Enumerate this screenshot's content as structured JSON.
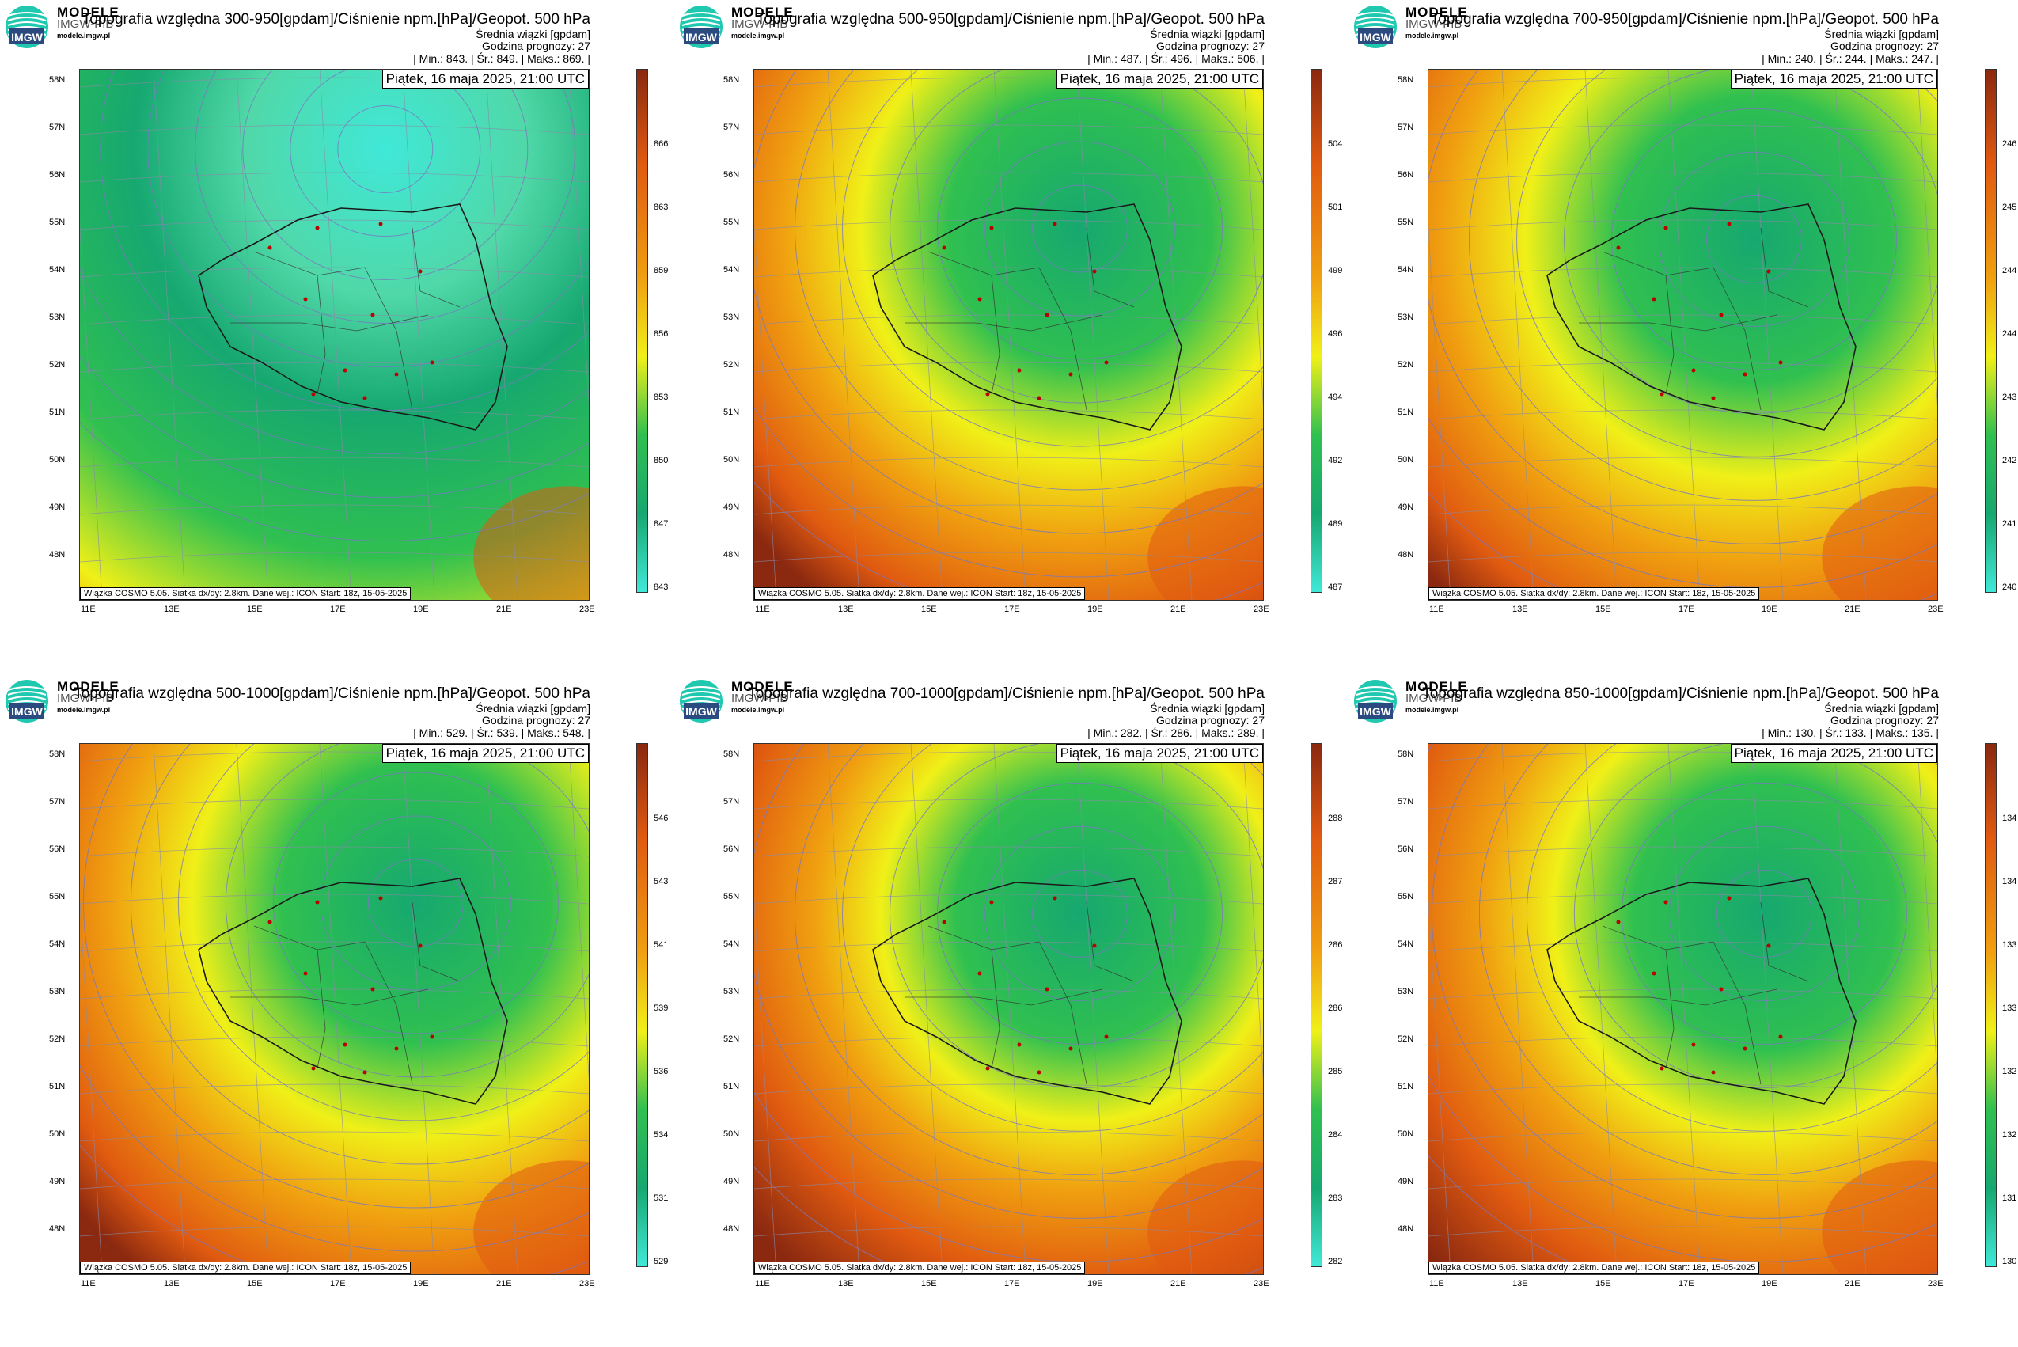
{
  "brand": {
    "name": "MODELE",
    "sub": "IMGW-PIB",
    "site": "modele.imgw.pl",
    "logo_text": "IMGW"
  },
  "colors": {
    "low": "#40e8d8",
    "mid1": "#16a870",
    "mid2": "#30c050",
    "mid3": "#f0f018",
    "mid4": "#f0a010",
    "high1": "#e05a10",
    "high2": "#8a2810"
  },
  "lat_labels": [
    "58N",
    "57N",
    "56N",
    "55N",
    "54N",
    "53N",
    "52N",
    "51N",
    "50N",
    "49N",
    "48N"
  ],
  "lon_labels": [
    "11E",
    "13E",
    "15E",
    "17E",
    "19E",
    "21E",
    "23E"
  ],
  "panels": [
    {
      "title": "Topografia względna 300-950[gpdam]/Ciśnienie npm.[hPa]/Geopot. 500 hPa",
      "subtitle1": "Średnia wiązki [gpdam]",
      "subtitle2": "Godzina prognozy: 27",
      "stats": "| Min.:    843. | Śr.:    849. | Maks.:    869. |",
      "date": "Piątek, 16 maja 2025, 21:00 UTC",
      "footer": "Wiązka COSMO 5.05. Siatka dx/dy: 2.8km. Dane wej.: ICON Start: 18z, 15-05-2025",
      "ticks": [
        "866",
        "863",
        "859",
        "856",
        "853",
        "850",
        "847",
        "843"
      ]
    },
    {
      "title": "Topografia względna 500-950[gpdam]/Ciśnienie npm.[hPa]/Geopot. 500 hPa",
      "subtitle1": "Średnia wiązki [gpdam]",
      "subtitle2": "Godzina prognozy: 27",
      "stats": "| Min.:    487. | Śr.:    496. | Maks.:    506. |",
      "date": "Piątek, 16 maja 2025, 21:00 UTC",
      "footer": "Wiązka COSMO 5.05. Siatka dx/dy: 2.8km. Dane wej.: ICON Start: 18z, 15-05-2025",
      "ticks": [
        "504",
        "501",
        "499",
        "496",
        "494",
        "492",
        "489",
        "487"
      ]
    },
    {
      "title": "Topografia względna 700-950[gpdam]/Ciśnienie npm.[hPa]/Geopot. 500 hPa",
      "subtitle1": "Średnia wiązki [gpdam]",
      "subtitle2": "Godzina prognozy: 27",
      "stats": "| Min.:    240. | Śr.:    244. | Maks.:    247. |",
      "date": "Piątek, 16 maja 2025, 21:00 UTC",
      "footer": "Wiązka COSMO 5.05. Siatka dx/dy: 2.8km. Dane wej.: ICON Start: 18z, 15-05-2025",
      "ticks": [
        "246",
        "245",
        "244",
        "244",
        "243",
        "242",
        "241",
        "240"
      ]
    },
    {
      "title": "Topografia względna 500-1000[gpdam]/Ciśnienie npm.[hPa]/Geopot. 500 hPa",
      "subtitle1": "Średnia wiązki [gpdam]",
      "subtitle2": "Godzina prognozy: 27",
      "stats": "| Min.:    529. | Śr.:    539. | Maks.:    548. |",
      "date": "Piątek, 16 maja 2025, 21:00 UTC",
      "footer": "Wiązka COSMO 5.05. Siatka dx/dy: 2.8km. Dane wej.: ICON Start: 18z, 15-05-2025",
      "ticks": [
        "546",
        "543",
        "541",
        "539",
        "536",
        "534",
        "531",
        "529"
      ]
    },
    {
      "title": "Topografia względna 700-1000[gpdam]/Ciśnienie npm.[hPa]/Geopot. 500 hPa",
      "subtitle1": "Średnia wiązki [gpdam]",
      "subtitle2": "Godzina prognozy: 27",
      "stats": "| Min.:    282. | Śr.:    286. | Maks.:    289. |",
      "date": "Piątek, 16 maja 2025, 21:00 UTC",
      "footer": "Wiązka COSMO 5.05. Siatka dx/dy: 2.8km. Dane wej.: ICON Start: 18z, 15-05-2025",
      "ticks": [
        "288",
        "287",
        "286",
        "286",
        "285",
        "284",
        "283",
        "282"
      ]
    },
    {
      "title": "Topografia względna 850-1000[gpdam]/Ciśnienie npm.[hPa]/Geopot. 500 hPa",
      "subtitle1": "Średnia wiązki [gpdam]",
      "subtitle2": "Godzina prognozy: 27",
      "stats": "| Min.:    130. | Śr.:    133. | Maks.:    135. |",
      "date": "Piątek, 16 maja 2025, 21:00 UTC",
      "footer": "Wiązka COSMO 5.05. Siatka dx/dy: 2.8km. Dane wej.: ICON Start: 18z, 15-05-2025",
      "ticks": [
        "134",
        "134",
        "133",
        "133",
        "132",
        "132",
        "131",
        "130"
      ]
    }
  ]
}
